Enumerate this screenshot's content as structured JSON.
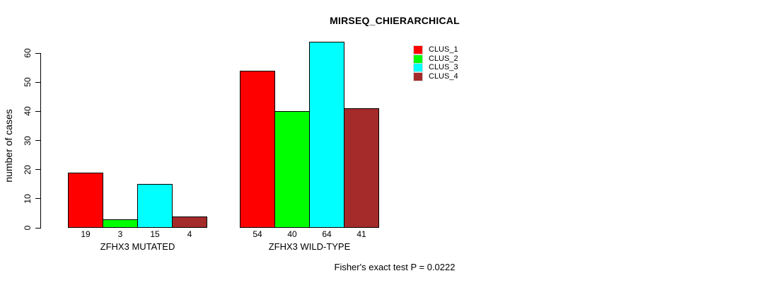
{
  "chart_data": {
    "type": "bar",
    "title": "MIRSEQ_CHIERARCHICAL",
    "ylabel": "number of cases",
    "xlabel": "",
    "categories": [
      "ZFHX3 MUTATED",
      "ZFHX3 WILD-TYPE"
    ],
    "series": [
      {
        "name": "CLUS_1",
        "color": "#FF0000",
        "values": [
          19,
          54
        ]
      },
      {
        "name": "CLUS_2",
        "color": "#00FF00",
        "values": [
          3,
          40
        ]
      },
      {
        "name": "CLUS_3",
        "color": "#00FFFF",
        "values": [
          15,
          64
        ]
      },
      {
        "name": "CLUS_4",
        "color": "#A52A2A",
        "values": [
          4,
          41
        ]
      }
    ],
    "yticks": [
      0,
      10,
      20,
      30,
      40,
      50,
      60
    ],
    "ylim": [
      0,
      64
    ],
    "grid": false,
    "legend_position": "top-right-inside",
    "bar_border_color": "#000000",
    "bar_value_labels_shown": true,
    "annotation": "Fisher's exact test P = 0.0222"
  }
}
